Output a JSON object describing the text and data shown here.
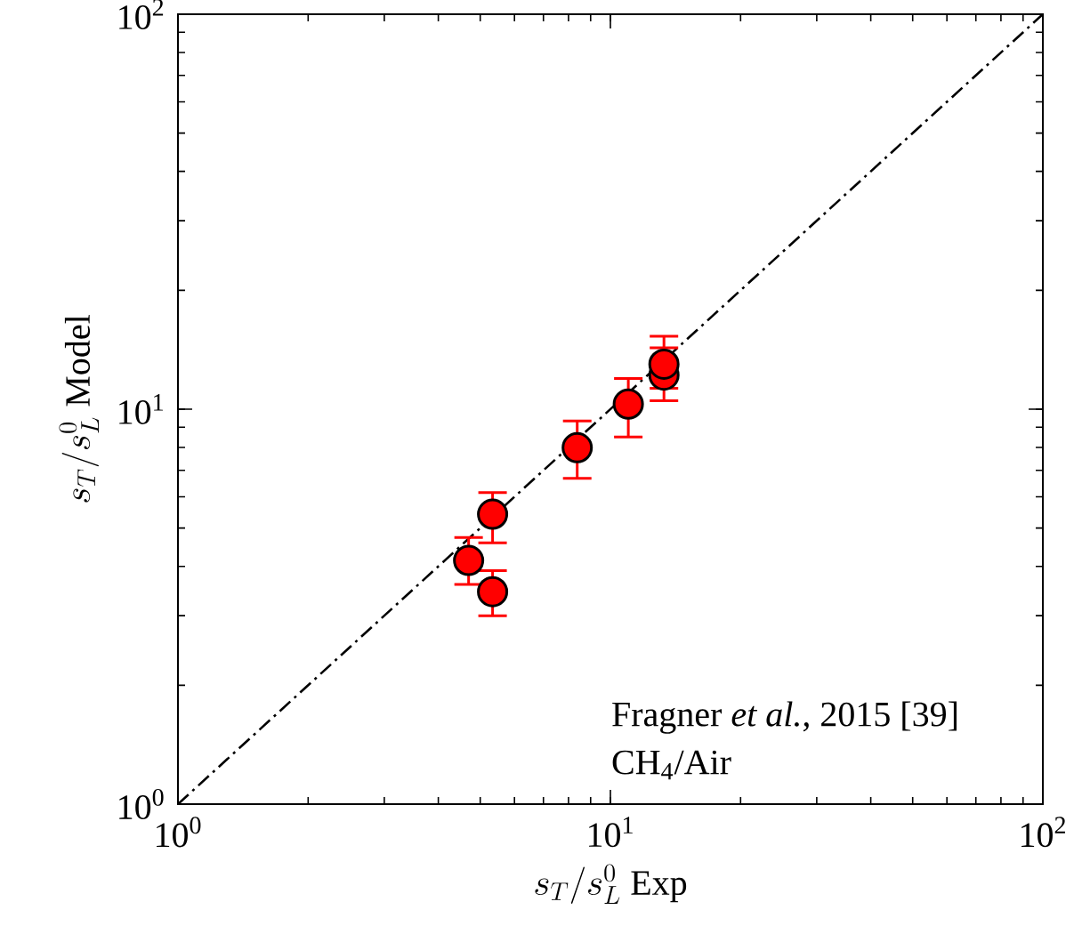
{
  "chart_data": {
    "type": "scatter",
    "xlabel": "s_T/s_L^0\\ \\mathrm{Exp}",
    "ylabel": "s_T/s_L^0\\ \\mathrm{Model}",
    "log": "xy",
    "xlim": [
      1,
      100
    ],
    "ylim": [
      1,
      100
    ],
    "xticks": [
      {
        "value": 1,
        "label": "10$^{0}$"
      },
      {
        "value": 10,
        "label": "10$^{1}$"
      },
      {
        "value": 100,
        "label": "10$^{2}$"
      }
    ],
    "yticks": [
      {
        "value": 1,
        "label": "10$^{0}$"
      },
      {
        "value": 10,
        "label": "10$^{1}$"
      },
      {
        "value": 100,
        "label": "10$^{2}$"
      }
    ],
    "grid": false,
    "annotations": [
      "Fragner *et al.*, 2015 [39]",
      "CH$_{4}$/Air"
    ],
    "series": [
      {
        "type": "line",
        "color": "#000000",
        "line_style": "dashdot",
        "marker": "none",
        "x": [
          1,
          100
        ],
        "values": [
          1,
          100
        ]
      },
      {
        "color": "#ff0000",
        "marker": "circle",
        "x": [
          4.7,
          5.34,
          5.34,
          8.38,
          11.0,
          13.3,
          13.3
        ],
        "values": [
          4.14,
          5.42,
          3.45,
          7.99,
          10.3,
          12.2,
          13.0
        ],
        "errors": [
          [
            3.6,
            4.73
          ],
          [
            4.59,
            6.15
          ],
          [
            3.0,
            3.9
          ],
          [
            6.68,
            9.34
          ],
          [
            8.5,
            11.96
          ],
          [
            10.5,
            14.3
          ],
          [
            11.3,
            15.3
          ]
        ]
      }
    ]
  }
}
